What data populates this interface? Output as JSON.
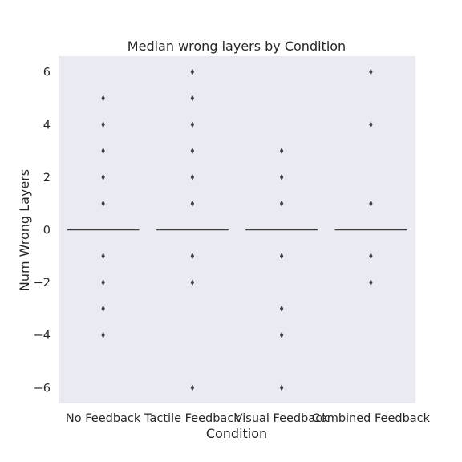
{
  "chart_data": {
    "type": "boxplot",
    "title": "Median wrong layers by Condition",
    "xlabel": "Condition",
    "ylabel": "Num Wrong Layers",
    "ylim": [
      -6.6,
      6.6
    ],
    "yticks": [
      6,
      4,
      2,
      0,
      -2,
      -4,
      -6
    ],
    "ytick_labels": [
      "6",
      "4",
      "2",
      "0",
      "−2",
      "−4",
      "−6"
    ],
    "categories": [
      "No Feedback",
      "Tactile Feedback",
      "Visual Feedback",
      "Combined Feedback"
    ],
    "grid": false,
    "background": "#eaeaf2",
    "box_color": "#3b4cc0",
    "series": [
      {
        "category": "No Feedback",
        "q1": 0,
        "median": 0,
        "q3": 0,
        "whisker_low": 0,
        "whisker_high": 0,
        "outliers": [
          5,
          4,
          3,
          2,
          1,
          -1,
          -2,
          -3,
          -4
        ]
      },
      {
        "category": "Tactile Feedback",
        "q1": 0,
        "median": 0,
        "q3": 0,
        "whisker_low": 0,
        "whisker_high": 0,
        "outliers": [
          6,
          5,
          4,
          3,
          2,
          1,
          -1,
          -2,
          -6
        ]
      },
      {
        "category": "Visual Feedback",
        "q1": 0,
        "median": 0,
        "q3": 0,
        "whisker_low": 0,
        "whisker_high": 0,
        "outliers": [
          3,
          2,
          1,
          -1,
          -3,
          -4,
          -6
        ]
      },
      {
        "category": "Combined Feedback",
        "q1": 0,
        "median": 0,
        "q3": 0,
        "whisker_low": 0,
        "whisker_high": 0,
        "outliers": [
          6,
          4,
          1,
          -1,
          -2
        ]
      }
    ]
  }
}
